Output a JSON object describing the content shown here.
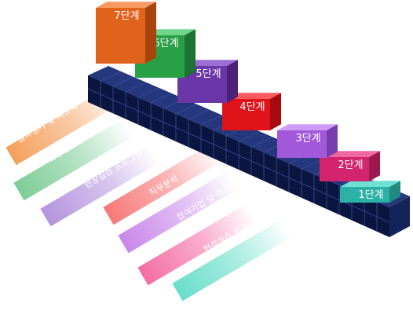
{
  "steps": [
    {
      "label": "1단계",
      "front": "#2bb1a6",
      "top": "#6fe0d4",
      "side": "#1f8a82"
    },
    {
      "label": "2단계",
      "front": "#d3246e",
      "top": "#f067a2",
      "side": "#9e1850"
    },
    {
      "label": "3단계",
      "front": "#a259d9",
      "top": "#cf9bf4",
      "side": "#7a3db0"
    },
    {
      "label": "4단계",
      "front": "#e0121a",
      "top": "#ff5960",
      "side": "#a80a10"
    },
    {
      "label": "5단계",
      "front": "#6a36a8",
      "top": "#9b6fd3",
      "side": "#4a2378"
    },
    {
      "label": "6단계",
      "front": "#28a046",
      "top": "#6fd68a",
      "side": "#1c7232"
    },
    {
      "label": "7단계",
      "front": "#e0621b",
      "top": "#f69b62",
      "side": "#a8450f"
    }
  ],
  "stages": [
    {
      "label": "현장실습 종합계획 수립",
      "color": "#2ed1b5"
    },
    {
      "label": "현장실습 참여기업 및 학생 모집",
      "color": "#f0287a"
    },
    {
      "label": "참여기업 및 학생 매칭",
      "color": "#b04fe0"
    },
    {
      "label": "직무분석",
      "color": "#f21f1f"
    },
    {
      "label": "현장실습 프로그램 설계 및 개발",
      "color": "#7a3fc4"
    },
    {
      "label": "현장실습 프로그램 운영",
      "color": "#1fa84a"
    },
    {
      "label": "결과평가 및 피드백",
      "color": "#f07a1c"
    }
  ]
}
